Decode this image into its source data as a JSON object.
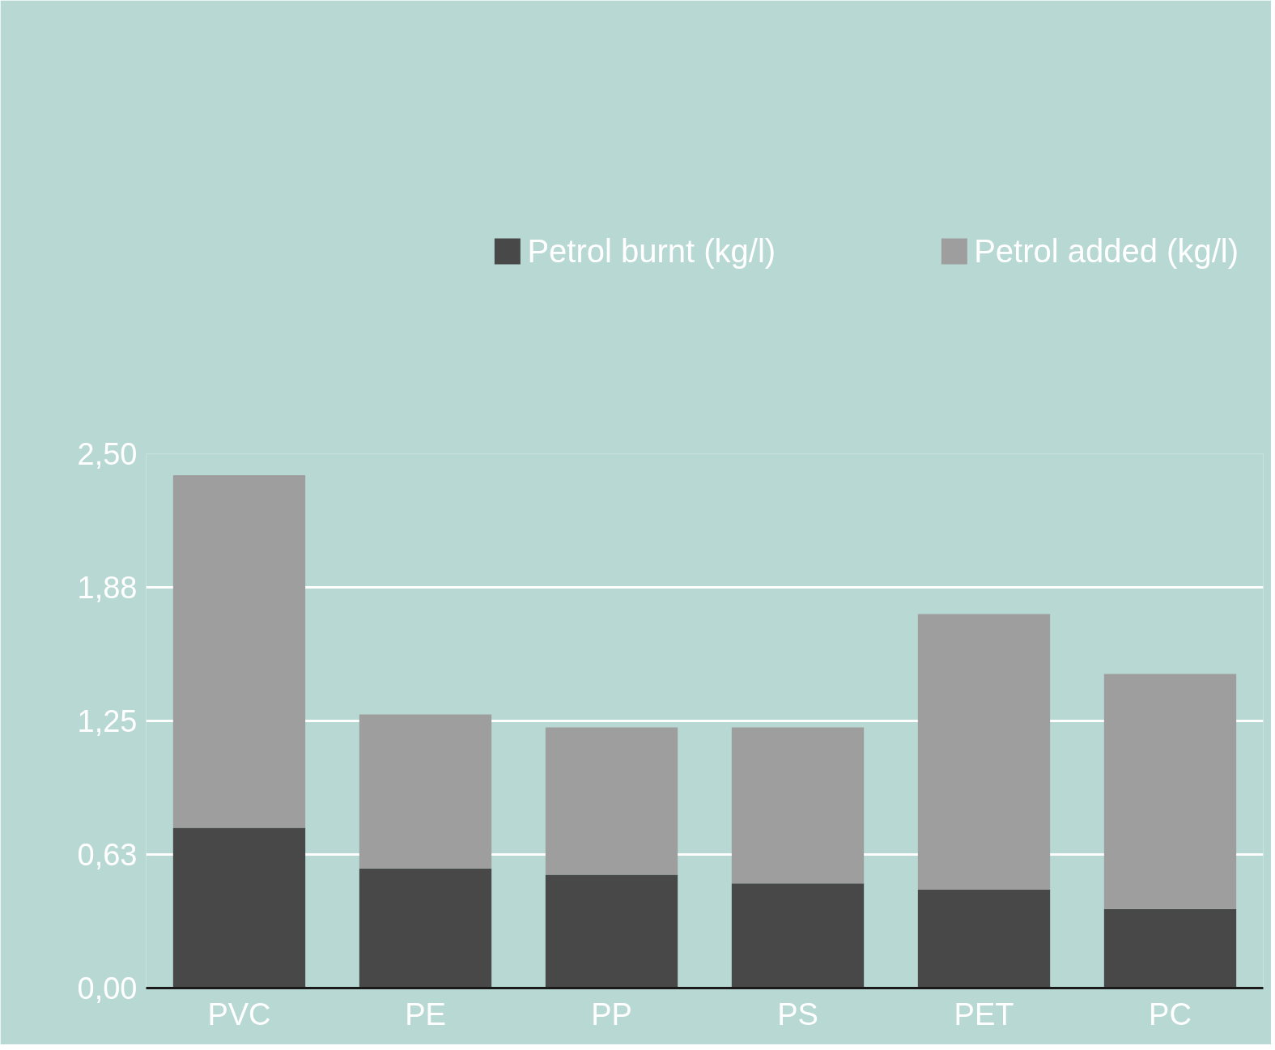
{
  "chart_data": {
    "type": "bar",
    "stacked": true,
    "categories": [
      "PVC",
      "PE",
      "PP",
      "PS",
      "PET",
      "PC"
    ],
    "series": [
      {
        "name": "Petrol burnt (kg/l)",
        "color": "#484848",
        "values": [
          0.75,
          0.56,
          0.53,
          0.49,
          0.46,
          0.37
        ]
      },
      {
        "name": "Petrol added (kg/l)",
        "color": "#9d9e9d",
        "values": [
          1.65,
          0.72,
          0.69,
          0.73,
          1.29,
          1.1
        ]
      }
    ],
    "ylim": [
      0,
      2.5
    ],
    "yticks": [
      {
        "value": 0,
        "label": "0,00"
      },
      {
        "value": 0.625,
        "label": "0,63"
      },
      {
        "value": 1.25,
        "label": "1,25"
      },
      {
        "value": 1.875,
        "label": "1,88"
      },
      {
        "value": 2.5,
        "label": "2,50"
      }
    ],
    "grid": "y",
    "legend": "top"
  }
}
